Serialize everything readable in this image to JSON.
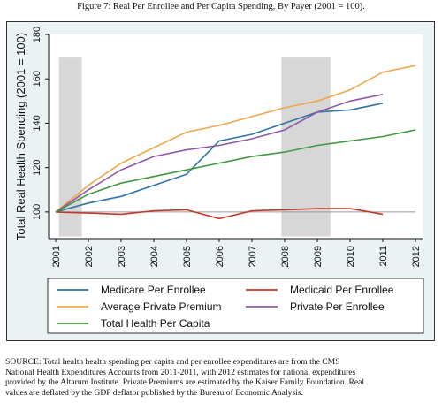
{
  "figure_caption": "Figure 7: Real Per Enrollee and Per Capita Spending, By Payer (2001 = 100).",
  "chart_data": {
    "type": "line",
    "title": "",
    "xlabel": "",
    "ylabel": "Total Real Health Spending (2001 = 100)",
    "x": [
      2001,
      2002,
      2003,
      2004,
      2005,
      2006,
      2007,
      2008,
      2009,
      2010,
      2011,
      2012
    ],
    "x_ticks": [
      "2001",
      "2002",
      "2003",
      "2004",
      "2005",
      "2006",
      "2007",
      "2008",
      "2009",
      "2010",
      "2011",
      "2012"
    ],
    "y_ticks": [
      "100",
      "120",
      "140",
      "160",
      "180"
    ],
    "xlim": [
      2001,
      2012
    ],
    "ylim": [
      88,
      180
    ],
    "reference_line": 100,
    "shaded_periods": [
      [
        2001.1,
        2001.8
      ],
      [
        2007.9,
        2009.4
      ]
    ],
    "grid": false,
    "legend_position": "bottom",
    "series": [
      {
        "name": "Medicare Per Enrollee",
        "color": "#2f74a6",
        "points": [
          [
            2001,
            100
          ],
          [
            2002,
            104
          ],
          [
            2003,
            107
          ],
          [
            2004,
            112
          ],
          [
            2005,
            117
          ],
          [
            2006,
            132
          ],
          [
            2007,
            135
          ],
          [
            2008,
            140
          ],
          [
            2009,
            145
          ],
          [
            2010,
            146
          ],
          [
            2011,
            149
          ]
        ]
      },
      {
        "name": "Medicaid Per Enrollee",
        "color": "#c0392b",
        "points": [
          [
            2001,
            100
          ],
          [
            2002,
            99.5
          ],
          [
            2003,
            99
          ],
          [
            2004,
            100.5
          ],
          [
            2005,
            101
          ],
          [
            2006,
            97
          ],
          [
            2007,
            100.5
          ],
          [
            2008,
            101
          ],
          [
            2009,
            101.5
          ],
          [
            2010,
            101.5
          ],
          [
            2011,
            99
          ]
        ]
      },
      {
        "name": "Average Private Premium",
        "color": "#f0a64d",
        "points": [
          [
            2001,
            100
          ],
          [
            2002,
            112
          ],
          [
            2003,
            122
          ],
          [
            2004,
            129
          ],
          [
            2005,
            136
          ],
          [
            2006,
            139
          ],
          [
            2007,
            143
          ],
          [
            2008,
            147
          ],
          [
            2009,
            150
          ],
          [
            2010,
            155
          ],
          [
            2011,
            163
          ],
          [
            2012,
            166
          ]
        ]
      },
      {
        "name": "Private Per Enrollee",
        "color": "#8e5aa8",
        "points": [
          [
            2001,
            100
          ],
          [
            2002,
            110
          ],
          [
            2003,
            119
          ],
          [
            2004,
            125
          ],
          [
            2005,
            128
          ],
          [
            2006,
            130
          ],
          [
            2007,
            133
          ],
          [
            2008,
            137
          ],
          [
            2009,
            145
          ],
          [
            2010,
            150
          ],
          [
            2011,
            153
          ]
        ]
      },
      {
        "name": "Total Health Per Capita",
        "color": "#3e9a3e",
        "points": [
          [
            2001,
            100
          ],
          [
            2002,
            108
          ],
          [
            2003,
            113
          ],
          [
            2004,
            116
          ],
          [
            2005,
            119
          ],
          [
            2006,
            122
          ],
          [
            2007,
            125
          ],
          [
            2008,
            127
          ],
          [
            2009,
            130
          ],
          [
            2010,
            132
          ],
          [
            2011,
            134
          ],
          [
            2012,
            137
          ]
        ]
      }
    ]
  },
  "source_lines": [
    "SOURCE: Total health health spending per capita and per enrollee expenditures are from the CMS",
    "National Health Expenditures Accounts from 2011-2011, with 2012 estimates for national expenditures",
    "provided by the Altarum Institute. Private Premiums are estimated by the Kaiser Family Foundation. Real",
    "values are deflated by the GDP deflator published by the Bureau of Economic Analysis."
  ]
}
